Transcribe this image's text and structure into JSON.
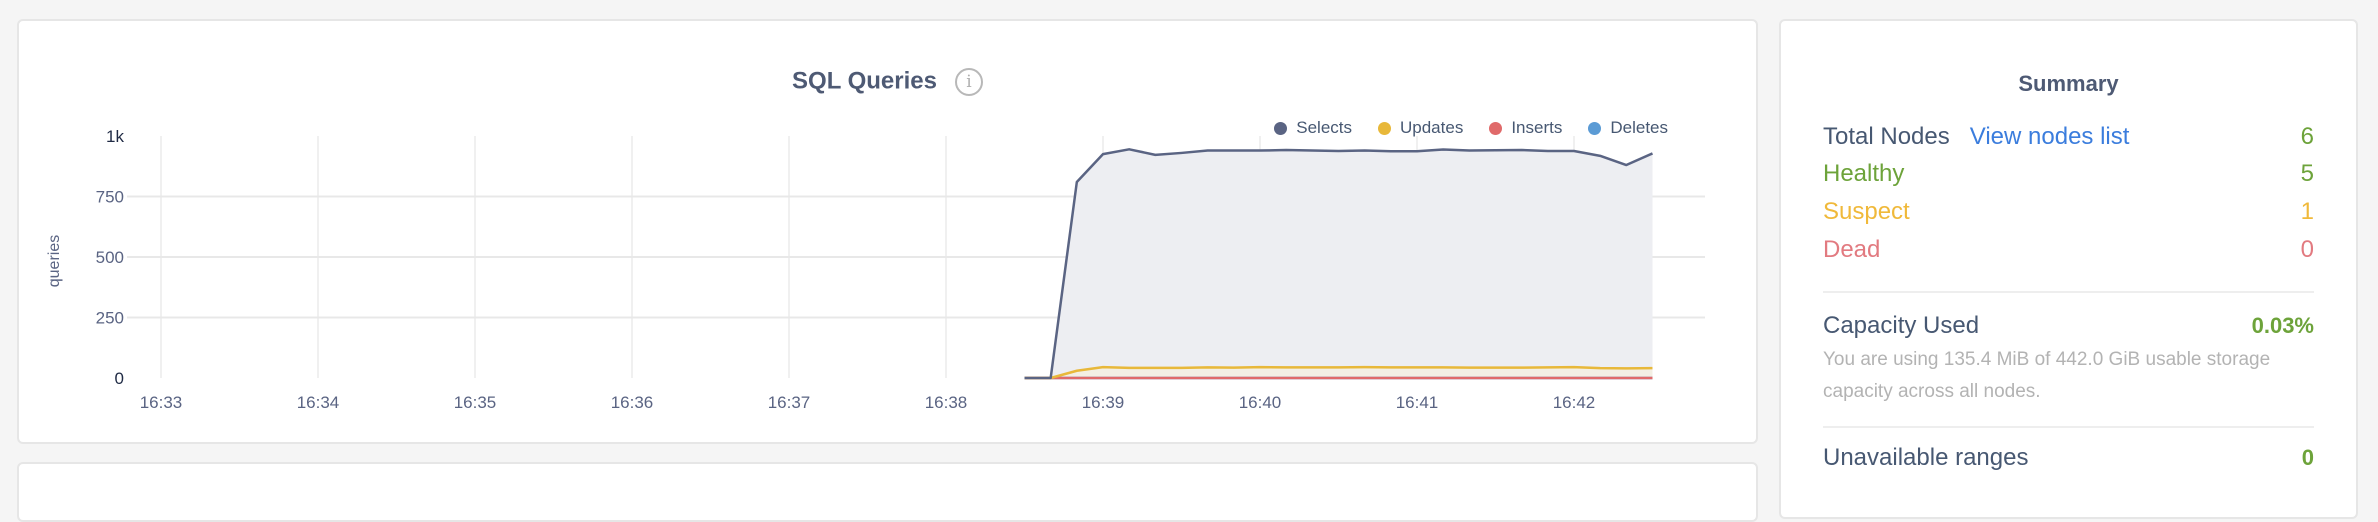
{
  "chart_data": {
    "type": "area",
    "title": "SQL Queries",
    "ylabel": "queries",
    "xlabel": "",
    "ylim": [
      0,
      1000
    ],
    "yticks": [
      "0",
      "250",
      "500",
      "750",
      "1k"
    ],
    "ytick_values": [
      0,
      250,
      500,
      750,
      1000
    ],
    "xticks": [
      "16:33",
      "16:34",
      "16:35",
      "16:36",
      "16:37",
      "16:38",
      "16:39",
      "16:40",
      "16:41",
      "16:42"
    ],
    "xlim": [
      "16:32:50",
      "16:42:58"
    ],
    "grid": true,
    "legend_placement": "top-right",
    "x": [
      "16:38:30",
      "16:38:40",
      "16:38:50",
      "16:39:00",
      "16:39:10",
      "16:39:20",
      "16:39:30",
      "16:39:40",
      "16:39:50",
      "16:40:00",
      "16:40:10",
      "16:40:20",
      "16:40:30",
      "16:40:40",
      "16:40:50",
      "16:41:00",
      "16:41:10",
      "16:41:20",
      "16:41:30",
      "16:41:40",
      "16:41:50",
      "16:42:00",
      "16:42:10",
      "16:42:20",
      "16:42:30"
    ],
    "series": [
      {
        "name": "Selects",
        "color": "#5a6483",
        "values": [
          0,
          0,
          810,
          925,
          945,
          922,
          930,
          940,
          940,
          940,
          942,
          940,
          938,
          940,
          937,
          937,
          944,
          940,
          941,
          942,
          938,
          938,
          918,
          880,
          928
        ]
      },
      {
        "name": "Updates",
        "color": "#e8b83a",
        "values": [
          0,
          0,
          30,
          45,
          42,
          42,
          42,
          44,
          43,
          45,
          44,
          44,
          44,
          45,
          44,
          44,
          44,
          43,
          43,
          43,
          44,
          45,
          41,
          40,
          41
        ]
      },
      {
        "name": "Inserts",
        "color": "#e06a6a",
        "values": [
          0,
          0,
          0,
          0,
          0,
          0,
          0,
          0,
          0,
          0,
          0,
          0,
          0,
          0,
          0,
          0,
          0,
          0,
          0,
          0,
          0,
          0,
          0,
          0,
          0
        ]
      },
      {
        "name": "Deletes",
        "color": "#5b9bd5",
        "values": [
          0,
          0,
          0,
          0,
          0,
          0,
          0,
          0,
          0,
          0,
          0,
          0,
          0,
          0,
          0,
          0,
          0,
          0,
          0,
          0,
          0,
          0,
          0,
          0,
          0
        ]
      }
    ]
  },
  "summary": {
    "title": "Summary",
    "total_nodes": {
      "label": "Total Nodes",
      "link": "View nodes list",
      "value": "6"
    },
    "healthy": {
      "label": "Healthy",
      "value": "5"
    },
    "suspect": {
      "label": "Suspect",
      "value": "1"
    },
    "dead": {
      "label": "Dead",
      "value": "0"
    },
    "capacity": {
      "label": "Capacity Used",
      "value": "0.03%",
      "description": "You are using 135.4 MiB of 442.0 GiB usable storage capacity across all nodes."
    },
    "unavailable": {
      "label": "Unavailable ranges",
      "value": "0"
    }
  },
  "colors": {
    "green": "#6da33a",
    "yellow": "#f0b93a",
    "red": "#e27a80",
    "link": "#3b7ddd",
    "text": "#475872"
  },
  "icons": {
    "info": "info-circle-icon"
  }
}
